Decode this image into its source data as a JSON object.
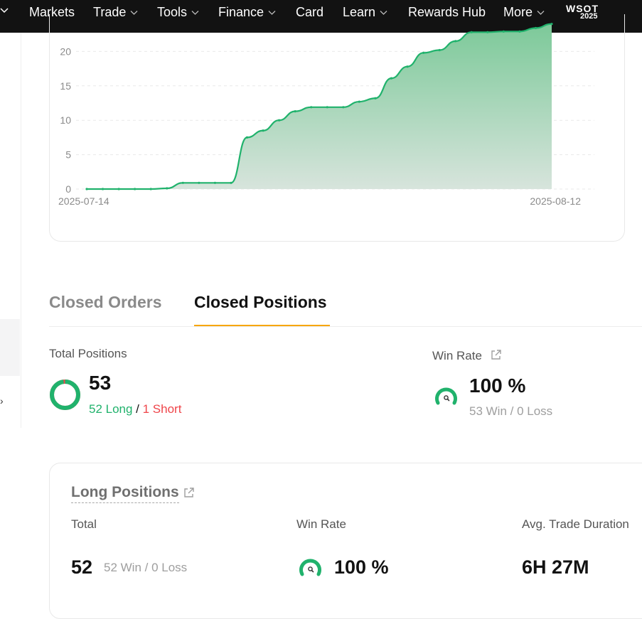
{
  "nav": {
    "items": [
      {
        "label": "Markets",
        "dropdown": false
      },
      {
        "label": "Trade",
        "dropdown": true
      },
      {
        "label": "Tools",
        "dropdown": true
      },
      {
        "label": "Finance",
        "dropdown": true
      },
      {
        "label": "Card",
        "dropdown": false
      },
      {
        "label": "Learn",
        "dropdown": true
      },
      {
        "label": "Rewards Hub",
        "dropdown": false
      },
      {
        "label": "More",
        "dropdown": true
      }
    ],
    "logo": {
      "line1": "WSOT",
      "line2": "2025"
    }
  },
  "chart_data": {
    "type": "area",
    "y_ticks": [
      "0",
      "5",
      "10",
      "15",
      "20"
    ],
    "ylim": [
      0,
      25
    ],
    "x_labels": [
      "2025-07-14",
      "2025-08-12"
    ],
    "x": [
      0,
      1,
      2,
      3,
      4,
      5,
      6,
      7,
      8,
      9,
      10,
      11,
      12,
      13,
      14,
      15,
      16,
      17,
      18,
      19,
      20,
      21,
      22,
      23,
      24,
      25,
      26,
      27,
      28,
      29
    ],
    "values": [
      0,
      0,
      0,
      0,
      0,
      0.1,
      0.9,
      0.9,
      0.9,
      0.9,
      7.5,
      8.5,
      10,
      11.3,
      11.9,
      11.9,
      11.9,
      12.7,
      13.2,
      16.1,
      17.8,
      19.8,
      20.2,
      21.5,
      22.8,
      22.8,
      22.9,
      22.9,
      23.4,
      24
    ],
    "color": "#20b26c"
  },
  "tabs": {
    "closed_orders": "Closed Orders",
    "closed_positions": "Closed Positions",
    "active": "closed_positions"
  },
  "summary": {
    "total_label": "Total Positions",
    "total_value": "53",
    "long_text": "52 Long",
    "separator": " / ",
    "short_text": "1 Short",
    "long_fraction": 0.981,
    "win_rate_label": "Win Rate",
    "win_rate_value": "100 %",
    "win_loss_text": "53 Win / 0 Loss",
    "win_rate_fraction": 1.0
  },
  "long_positions": {
    "title": "Long Positions",
    "total_label": "Total",
    "total_value": "52",
    "total_sub": "52 Win / 0 Loss",
    "win_rate_label": "Win Rate",
    "win_rate_value": "100 %",
    "duration_label": "Avg. Trade Duration",
    "duration_value": "6H 27M"
  },
  "colors": {
    "green": "#20b26c",
    "red": "#ef454a",
    "accent": "#f7a600",
    "nav_bg": "#121212"
  }
}
